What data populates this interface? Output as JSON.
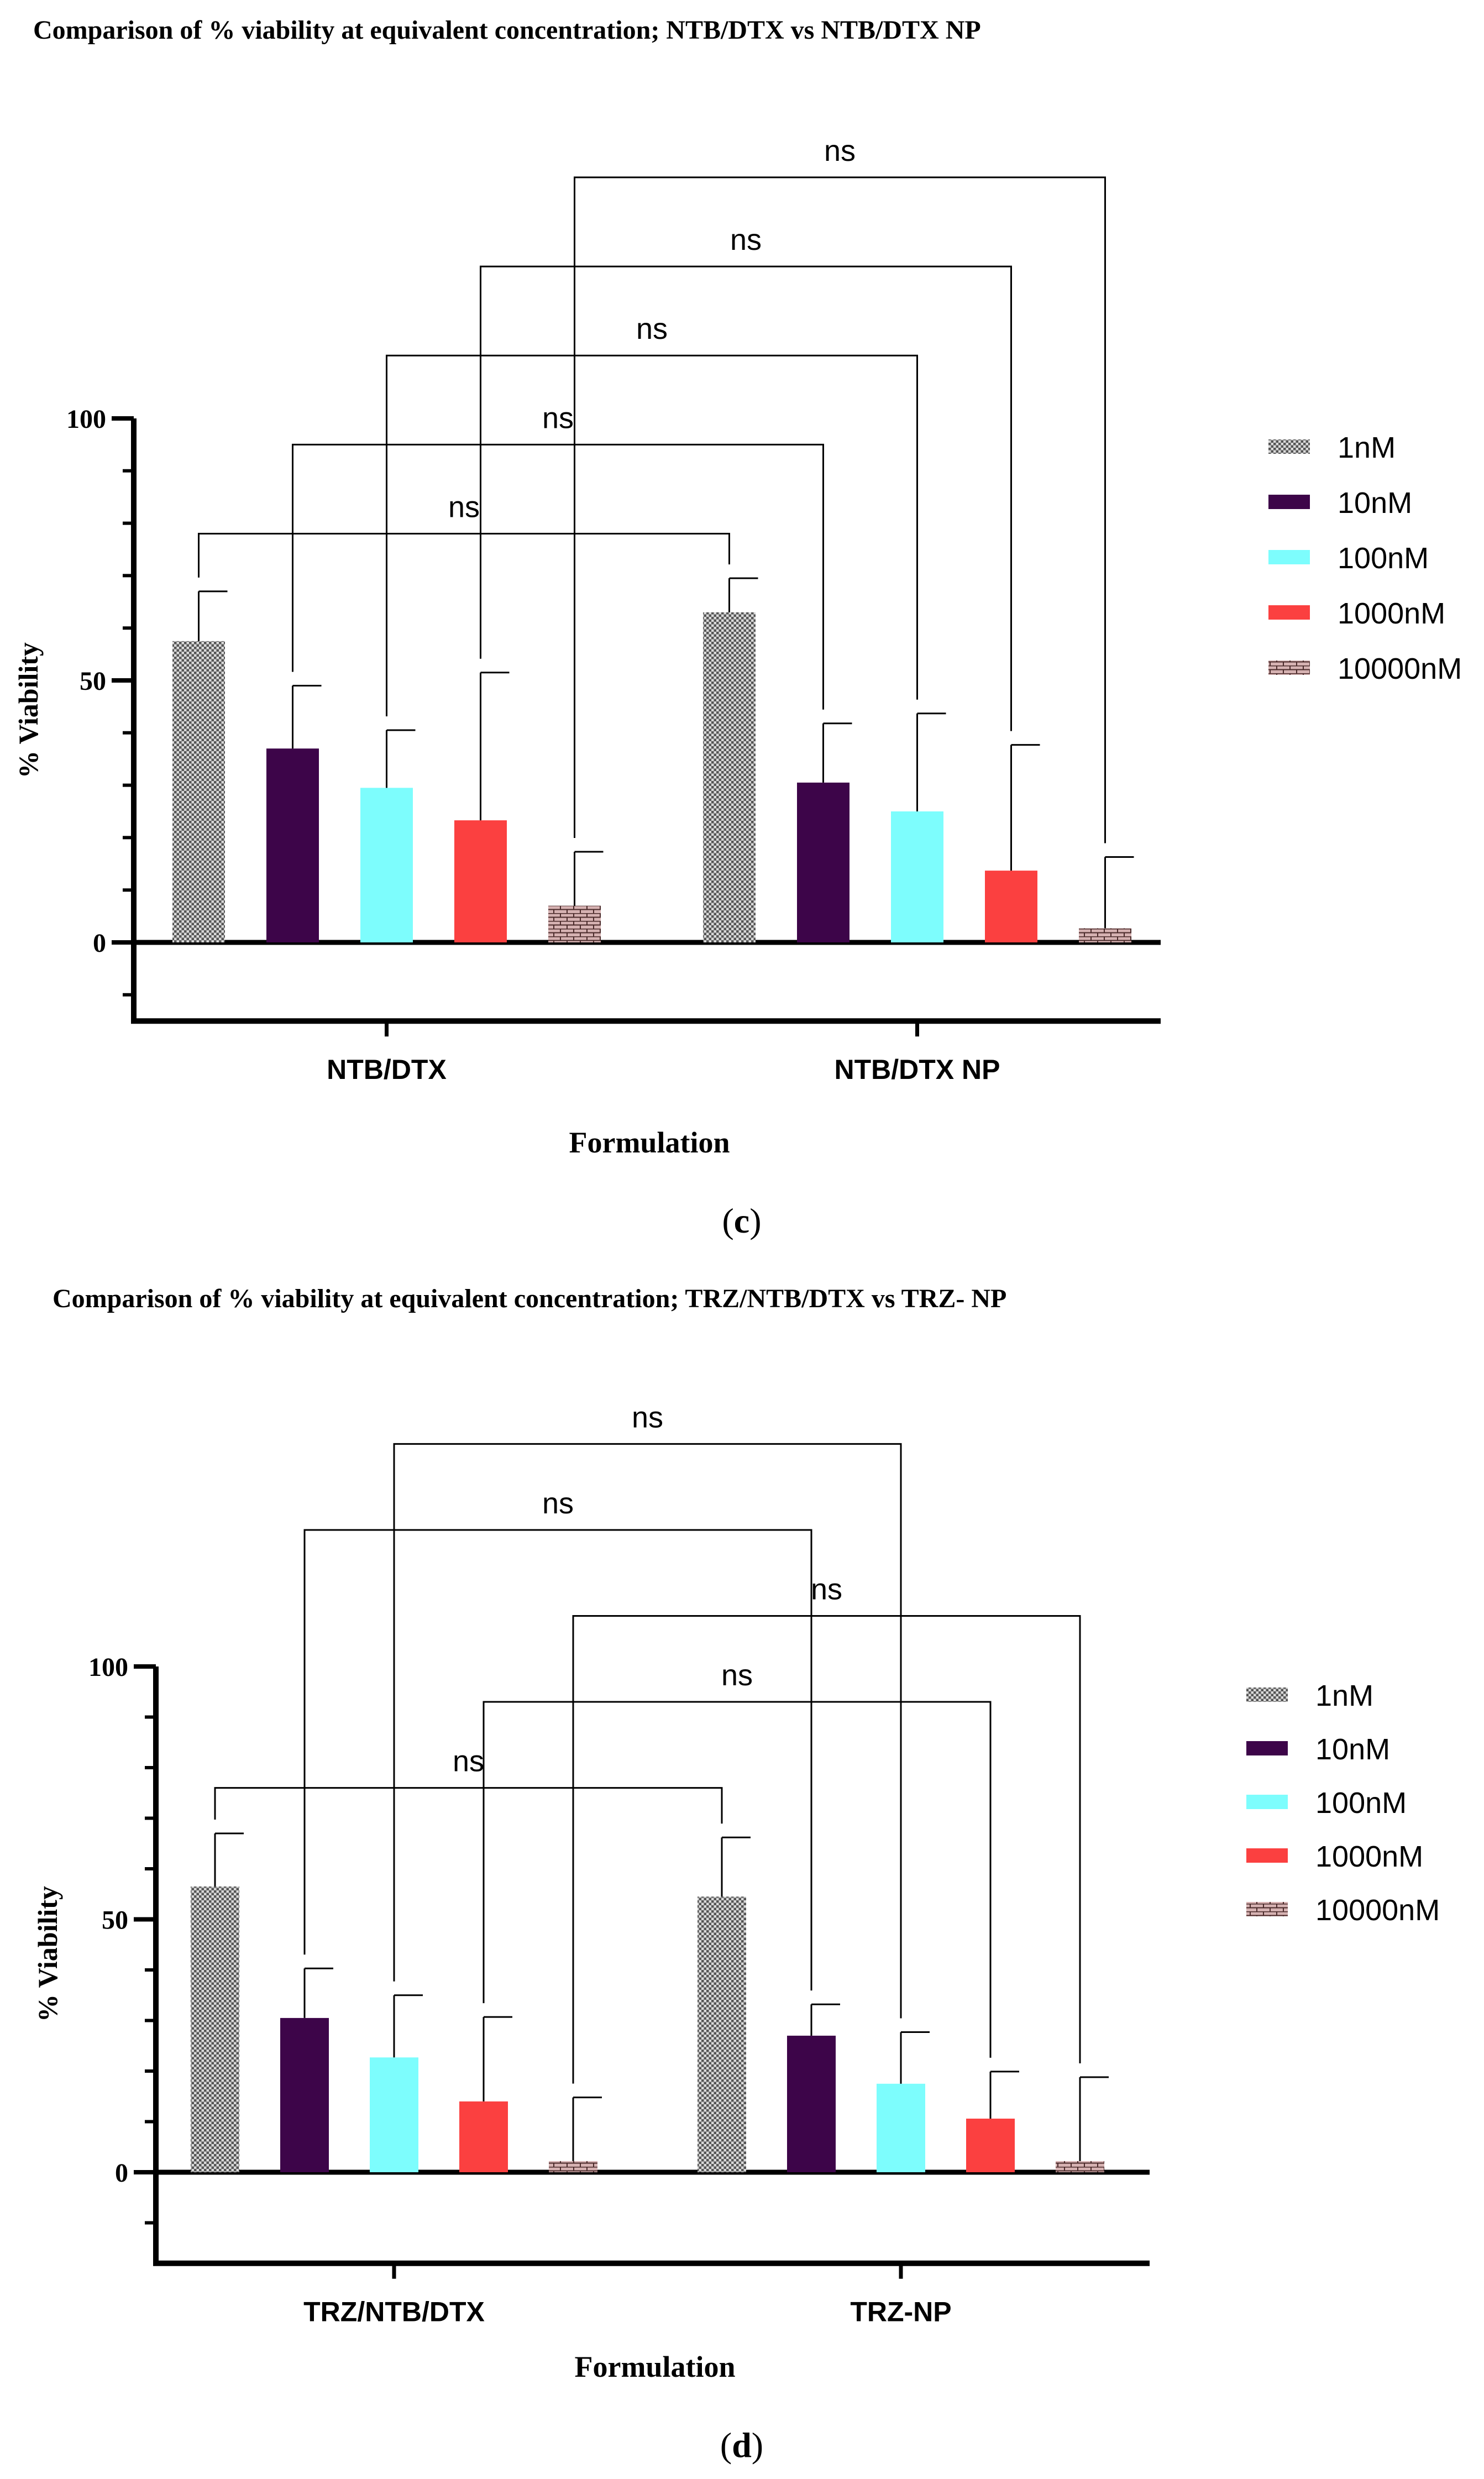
{
  "colors": {
    "s1nM": "#a8a8a8",
    "s10nM": "#3d0549",
    "s100nM": "#7dfdfd",
    "s1000nM": "#fb4040",
    "s10000nM": "#c9a3a3",
    "axis": "#000000",
    "text": "#000000"
  },
  "chart_data": [
    {
      "type": "bar",
      "title": "Comparison of % viability at equivalent concentration; NTB/DTX  vs NTB/DTX NP",
      "panel_label": "c",
      "xlabel": "Formulation",
      "ylabel": "% Viability",
      "ylim": [
        -15,
        100
      ],
      "yticks": [
        0,
        50,
        100
      ],
      "ytick_labels": [
        "0",
        "50",
        "100"
      ],
      "categories": [
        "NTB/DTX",
        "NTB/DTX NP"
      ],
      "legend_position": "right",
      "series": [
        {
          "name": "1nM",
          "pattern": "dots",
          "values": [
            57.5,
            63.0
          ],
          "errors": [
            9.5,
            6.5
          ]
        },
        {
          "name": "10nM",
          "pattern": "solid",
          "values": [
            37.0,
            30.5
          ],
          "errors": [
            12.0,
            11.3
          ]
        },
        {
          "name": "100nM",
          "pattern": "solid",
          "values": [
            29.5,
            25.0
          ],
          "errors": [
            11.0,
            18.7
          ]
        },
        {
          "name": "1000nM",
          "pattern": "solid",
          "values": [
            23.3,
            13.7
          ],
          "errors": [
            28.2,
            24.0
          ]
        },
        {
          "name": "10000nM",
          "pattern": "brick",
          "values": [
            7.0,
            2.7
          ],
          "errors": [
            10.3,
            13.6
          ]
        }
      ],
      "comparisons": [
        {
          "series": 0,
          "label": "ns",
          "y": 78
        },
        {
          "series": 1,
          "label": "ns",
          "y": 95
        },
        {
          "series": 2,
          "label": "ns",
          "y": 112
        },
        {
          "series": 3,
          "label": "ns",
          "y": 129
        },
        {
          "series": 4,
          "label": "ns",
          "y": 146
        }
      ]
    },
    {
      "type": "bar",
      "title": "Comparison of % viability at equivalent concentration; TRZ/NTB/DTX  vs TRZ- NP",
      "panel_label": "d",
      "xlabel": "Formulation",
      "ylabel": "% Viability",
      "ylim": [
        -18,
        100
      ],
      "yticks": [
        0,
        50,
        100
      ],
      "ytick_labels": [
        "0",
        "50",
        "100"
      ],
      "categories": [
        "TRZ/NTB/DTX",
        "TRZ-NP"
      ],
      "legend_position": "right",
      "series": [
        {
          "name": "1nM",
          "pattern": "dots",
          "values": [
            56.5,
            54.5
          ],
          "errors": [
            10.5,
            11.7
          ]
        },
        {
          "name": "10nM",
          "pattern": "solid",
          "values": [
            30.5,
            27.0
          ],
          "errors": [
            9.8,
            6.2
          ]
        },
        {
          "name": "100nM",
          "pattern": "solid",
          "values": [
            22.7,
            17.5
          ],
          "errors": [
            12.3,
            10.2
          ]
        },
        {
          "name": "1000nM",
          "pattern": "solid",
          "values": [
            14.0,
            10.6
          ],
          "errors": [
            16.7,
            9.3
          ]
        },
        {
          "name": "10000nM",
          "pattern": "brick",
          "values": [
            2.2,
            2.2
          ],
          "errors": [
            12.6,
            16.6
          ]
        }
      ],
      "comparisons": [
        {
          "series": 0,
          "label": "ns",
          "y": 76
        },
        {
          "series": 3,
          "label": "ns",
          "y": 93
        },
        {
          "series": 4,
          "label": "ns",
          "y": 110
        },
        {
          "series": 1,
          "label": "ns",
          "y": 127
        },
        {
          "series": 2,
          "label": "ns",
          "y": 144
        }
      ]
    }
  ]
}
